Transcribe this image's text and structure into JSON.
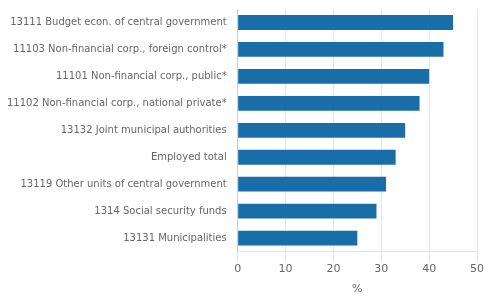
{
  "chart_data": {
    "type": "bar",
    "orientation": "horizontal",
    "categories": [
      "13131 Municipalities",
      "1314 Social security funds",
      "13119 Other units of central government",
      "Employed total",
      "13132 Joint municipal authorities",
      "11102 Non-financial corp., national private*",
      "11101 Non-financial corp., public*",
      "11103 Non-financial corp., foreign control*",
      "13111 Budget econ. of central government"
    ],
    "values": [
      25,
      29,
      31,
      33,
      35,
      38,
      40,
      43,
      45
    ],
    "color": "#1a6ea8",
    "xlabel": "%",
    "xlim": [
      0,
      50
    ],
    "xticks": [
      0,
      10,
      20,
      30,
      40,
      50
    ],
    "grid": true
  }
}
